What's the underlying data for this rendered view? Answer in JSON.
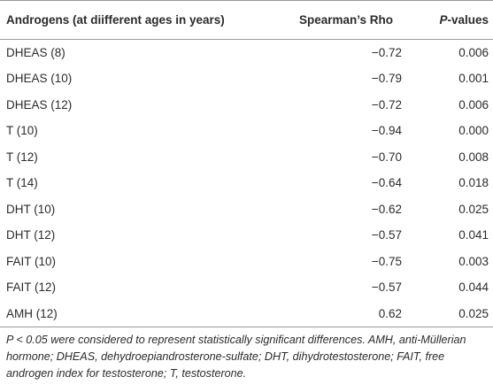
{
  "table": {
    "headers": {
      "androgens": "Androgens (at diifferent ages in years)",
      "rho": "Spearman’s Rho",
      "p_italic": "P",
      "p_rest": "-values"
    },
    "rows": [
      {
        "androgen": "DHEAS (8)",
        "rho": "−0.72",
        "p": "0.006"
      },
      {
        "androgen": "DHEAS (10)",
        "rho": "−0.79",
        "p": "0.001"
      },
      {
        "androgen": "DHEAS (12)",
        "rho": "−0.72",
        "p": "0.006"
      },
      {
        "androgen": "T (10)",
        "rho": "−0.94",
        "p": "0.000"
      },
      {
        "androgen": "T (12)",
        "rho": "−0.70",
        "p": "0.008"
      },
      {
        "androgen": "T (14)",
        "rho": "−0.64",
        "p": "0.018"
      },
      {
        "androgen": "DHT (10)",
        "rho": "−0.62",
        "p": "0.025"
      },
      {
        "androgen": "DHT (12)",
        "rho": "−0.57",
        "p": "0.041"
      },
      {
        "androgen": "FAIT (10)",
        "rho": "−0.75",
        "p": "0.003"
      },
      {
        "androgen": "FAIT (12)",
        "rho": "−0.57",
        "p": "0.044"
      },
      {
        "androgen": "AMH (12)",
        "rho": "0.62",
        "p": "0.025"
      }
    ]
  },
  "footnote": "P < 0.05 were considered to represent statistically significant differences. AMH, anti-Müllerian hormone; DHEAS, dehydroepiandrosterone-sulfate; DHT, dihydrotestosterone; FAIT, free androgen index for testosterone; T, testosterone."
}
